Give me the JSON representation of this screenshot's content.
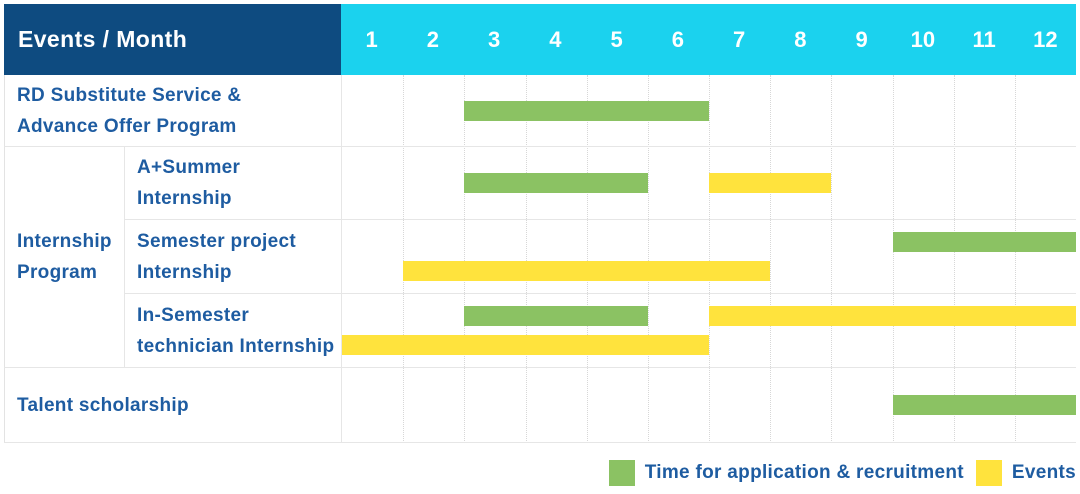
{
  "header": {
    "title": "Events / Month",
    "months": [
      "1",
      "2",
      "3",
      "4",
      "5",
      "6",
      "7",
      "8",
      "9",
      "10",
      "11",
      "12"
    ]
  },
  "group": {
    "label": "Internship Program",
    "label_lines": [
      "Internship",
      "Program"
    ]
  },
  "rows": [
    {
      "label": "RD Substitute Service & Advance Offer Program",
      "label_lines": [
        "RD Substitute Service &",
        "Advance Offer Program"
      ]
    },
    {
      "label": "A+Summer Internship",
      "group": "Internship Program",
      "label_lines": [
        "A+Summer",
        "Internship"
      ]
    },
    {
      "label": "Semester project Internship",
      "group": "Internship Program",
      "label_lines": [
        "Semester project",
        "Internship"
      ]
    },
    {
      "label": "In-Semester technician Internship",
      "group": "Internship Program",
      "label_lines": [
        "In-Semester",
        "technician Internship"
      ]
    },
    {
      "label": "Talent scholarship",
      "label_lines": [
        "Talent scholarship"
      ]
    }
  ],
  "legend": {
    "items": [
      {
        "key": "recruitment",
        "label": "Time for application & recruitment",
        "color": "#8bc263"
      },
      {
        "key": "events",
        "label": "Events",
        "color": "#ffe33d"
      }
    ]
  },
  "colors": {
    "header_bg": "#0e4b80",
    "month_strip_bg": "#1bd2ee",
    "label_text": "#1e5ca1",
    "recruitment_green": "#8bc263",
    "events_yellow": "#ffe33d",
    "gridline": "#d7d7d7",
    "row_line": "#e6e6e6"
  },
  "chart_data": {
    "type": "bar",
    "variant": "gantt",
    "title": "Events / Month",
    "xlabel": "Month",
    "x_ticks": [
      1,
      2,
      3,
      4,
      5,
      6,
      7,
      8,
      9,
      10,
      11,
      12
    ],
    "xlim": [
      1,
      12
    ],
    "grid": true,
    "legend_position": "bottom-right",
    "series_legend": [
      "Time for application & recruitment",
      "Events"
    ],
    "tasks": [
      {
        "row": "RD Substitute Service & Advance Offer Program",
        "bars": [
          [
            {
              "type": "recruitment",
              "series": "Time for application & recruitment",
              "start_month": 3,
              "end_month": 6
            }
          ]
        ]
      },
      {
        "row": "A+Summer Internship",
        "group": "Internship Program",
        "bars": [
          [
            {
              "type": "recruitment",
              "series": "Time for application & recruitment",
              "start_month": 3,
              "end_month": 5
            },
            {
              "type": "events",
              "series": "Events",
              "start_month": 7,
              "end_month": 8
            }
          ]
        ]
      },
      {
        "row": "Semester project Internship",
        "group": "Internship Program",
        "bars": [
          [
            {
              "type": "recruitment",
              "series": "Time for application & recruitment",
              "start_month": 10,
              "end_month": 12
            }
          ],
          [
            {
              "type": "events",
              "series": "Events",
              "start_month": 2,
              "end_month": 7
            }
          ]
        ]
      },
      {
        "row": "In-Semester technician Internship",
        "group": "Internship Program",
        "bars": [
          [
            {
              "type": "recruitment",
              "series": "Time for application & recruitment",
              "start_month": 3,
              "end_month": 5
            },
            {
              "type": "events",
              "series": "Events",
              "start_month": 7,
              "end_month": 12
            }
          ],
          [
            {
              "type": "events",
              "series": "Events",
              "start_month": 1,
              "end_month": 6
            }
          ]
        ]
      },
      {
        "row": "Talent scholarship",
        "bars": [
          [
            {
              "type": "recruitment",
              "series": "Time for application & recruitment",
              "start_month": 10,
              "end_month": 12
            }
          ]
        ]
      }
    ]
  }
}
